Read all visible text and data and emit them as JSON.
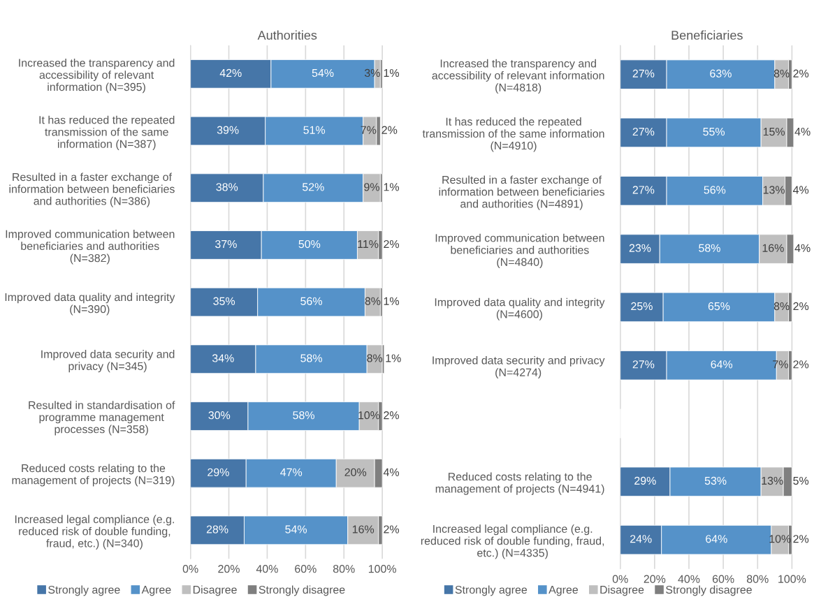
{
  "chart_data": [
    {
      "type": "bar",
      "orientation": "horizontal",
      "stacked": true,
      "title": "Authorities",
      "categories": [
        "Increased the transparency and accessibility of relevant information (N=395)",
        "It has reduced the repeated transmission of the same information (N=387)",
        "Resulted in a faster exchange of information between beneficiaries and authorities (N=386)",
        "Improved communication between beneficiaries and authorities (N=382)",
        "Improved data quality and integrity (N=390)",
        "Improved data security and privacy (N=345)",
        "Resulted in standardisation of programme management processes (N=358)",
        "Reduced costs relating to the management of projects (N=319)",
        "Increased legal compliance (e.g. reduced risk of double funding, fraud, etc.) (N=340)"
      ],
      "series": [
        {
          "name": "Strongly agree",
          "color": "#4676a8",
          "values": [
            42,
            39,
            38,
            37,
            35,
            34,
            30,
            29,
            28
          ],
          "value_labels": [
            "42%",
            "39%",
            "38%",
            "37%",
            "35%",
            "34%",
            "30%",
            "29%",
            "28%"
          ]
        },
        {
          "name": "Agree",
          "color": "#5592c9",
          "values": [
            54,
            51,
            52,
            50,
            56,
            58,
            58,
            47,
            54
          ],
          "value_labels": [
            "54%",
            "51%",
            "52%",
            "50%",
            "56%",
            "58%",
            "58%",
            "47%",
            "54%"
          ]
        },
        {
          "name": "Disagree",
          "color": "#bfbfbf",
          "values": [
            3,
            7,
            9,
            11,
            8,
            8,
            10,
            20,
            16
          ],
          "value_labels": [
            "3%",
            "7%",
            "9%",
            "11%",
            "8%",
            "8%",
            "10%",
            "20%",
            "16%"
          ]
        },
        {
          "name": "Strongly disagree",
          "color": "#7f7f7f",
          "values": [
            1,
            2,
            1,
            2,
            1,
            1,
            2,
            4,
            2
          ],
          "value_labels": [
            "1%",
            "2%",
            "1%",
            "2%",
            "1%",
            "1%",
            "2%",
            "4%",
            "2%"
          ]
        }
      ],
      "xlim": [
        0,
        101
      ],
      "xticks": [
        {
          "value": 0,
          "label": "0%"
        },
        {
          "value": 20,
          "label": "20%"
        },
        {
          "value": 40,
          "label": "40%"
        },
        {
          "value": 60,
          "label": "60%"
        },
        {
          "value": 80,
          "label": "80%"
        },
        {
          "value": 100,
          "label": "100%"
        }
      ],
      "grid": "x",
      "legend": "bottom"
    },
    {
      "type": "bar",
      "orientation": "horizontal",
      "stacked": true,
      "title": "Beneficiaries",
      "categories": [
        "Increased the transparency and accessibility of relevant information (N=4818)",
        "It has reduced the repeated transmission of the same information (N=4910)",
        "Resulted in a faster exchange of information between beneficiaries and authorities (N=4891)",
        "Improved communication between beneficiaries and authorities (N=4840)",
        "Improved data quality and integrity (N=4600)",
        "Improved data security and privacy (N=4274)",
        null,
        "Reduced costs relating to the management of projects (N=4941)",
        "Increased legal compliance (e.g. reduced risk of double funding, fraud, etc.) (N=4335)"
      ],
      "series": [
        {
          "name": "Strongly agree",
          "color": "#4676a8",
          "values": [
            27,
            27,
            27,
            23,
            25,
            27,
            null,
            29,
            24
          ],
          "value_labels": [
            "27%",
            "27%",
            "27%",
            "23%",
            "25%",
            "27%",
            null,
            "29%",
            "24%"
          ]
        },
        {
          "name": "Agree",
          "color": "#5592c9",
          "values": [
            63,
            55,
            56,
            58,
            65,
            64,
            null,
            53,
            64
          ],
          "value_labels": [
            "63%",
            "55%",
            "56%",
            "58%",
            "65%",
            "64%",
            null,
            "53%",
            "64%"
          ]
        },
        {
          "name": "Disagree",
          "color": "#bfbfbf",
          "values": [
            8,
            15,
            13,
            16,
            8,
            7,
            null,
            13,
            10
          ],
          "value_labels": [
            "8%",
            "15%",
            "13%",
            "16%",
            "8%",
            "7%",
            null,
            "13%",
            "10%"
          ]
        },
        {
          "name": "Strongly disagree",
          "color": "#7f7f7f",
          "values": [
            2,
            4,
            4,
            4,
            2,
            2,
            null,
            5,
            2
          ],
          "value_labels": [
            "2%",
            "4%",
            "4%",
            "4%",
            "2%",
            "2%",
            null,
            "5%",
            "2%"
          ]
        }
      ],
      "xlim": [
        0,
        101
      ],
      "xticks": [
        {
          "value": 0,
          "label": "0%"
        },
        {
          "value": 20,
          "label": "20%"
        },
        {
          "value": 40,
          "label": "40%"
        },
        {
          "value": 60,
          "label": "60%"
        },
        {
          "value": 80,
          "label": "80%"
        },
        {
          "value": 100,
          "label": "100%"
        }
      ],
      "grid": "x",
      "legend": "bottom"
    }
  ]
}
